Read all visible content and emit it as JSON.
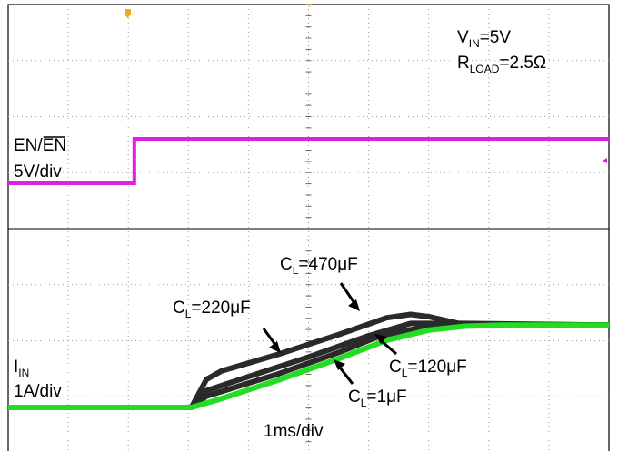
{
  "chart_data": {
    "type": "line",
    "xlabel": "1ms/div",
    "annotations": {
      "vin": {
        "main": "V",
        "sub": "IN",
        "rest": "=5V"
      },
      "rload": {
        "main": "R",
        "sub": "LOAD",
        "rest": "=2.5Ω"
      }
    },
    "channels": [
      {
        "name": "EN/EN",
        "name_main": "EN/",
        "name_overlined": "EN",
        "scale": "5V/div",
        "color": "#e020e0",
        "x_div": [
          0,
          2.1,
          2.1,
          10
        ],
        "y_level": [
          0,
          0,
          1,
          1
        ]
      },
      {
        "name": "IIN",
        "name_main": "I",
        "name_sub": "IN",
        "scale": "1A/div",
        "color": "#22dd22",
        "color_family": "#2a2a2a"
      }
    ],
    "series": [
      {
        "name": "C_L=1μF",
        "label_main": "C",
        "label_sub": "L",
        "label_rest": "=1μF",
        "x_div": [
          0,
          3.05,
          3.5,
          4.5,
          5.5,
          6.3,
          7.0,
          7.6,
          8.2,
          9.0,
          10.0
        ],
        "i_amps": [
          0,
          0,
          0.14,
          0.49,
          0.87,
          1.2,
          1.38,
          1.45,
          1.47,
          1.47,
          1.47
        ]
      },
      {
        "name": "C_L=120μF",
        "label_main": "C",
        "label_sub": "L",
        "label_rest": "=120μF",
        "x_div": [
          0,
          3.05,
          3.3,
          4.5,
          5.5,
          6.2,
          6.9,
          7.5,
          8.2,
          10.0
        ],
        "i_amps": [
          0,
          0,
          0.2,
          0.6,
          0.98,
          1.28,
          1.43,
          1.47,
          1.47,
          1.47
        ]
      },
      {
        "name": "C_L=220μF",
        "label_main": "C",
        "label_sub": "L",
        "label_rest": "=220μF",
        "x_div": [
          0,
          3.05,
          3.3,
          4.0,
          5.0,
          6.0,
          6.7,
          7.3,
          8.0,
          10.0
        ],
        "i_amps": [
          0,
          0,
          0.3,
          0.55,
          0.9,
          1.28,
          1.5,
          1.5,
          1.48,
          1.47
        ]
      },
      {
        "name": "C_L=470μF",
        "label_main": "C",
        "label_sub": "L",
        "label_rest": "=470μF",
        "x_div": [
          0,
          3.05,
          3.3,
          3.55,
          4.5,
          5.5,
          6.3,
          6.7,
          7.0,
          7.5,
          10.0
        ],
        "i_amps": [
          0,
          0,
          0.5,
          0.65,
          0.95,
          1.3,
          1.6,
          1.66,
          1.62,
          1.5,
          1.47
        ]
      }
    ]
  }
}
